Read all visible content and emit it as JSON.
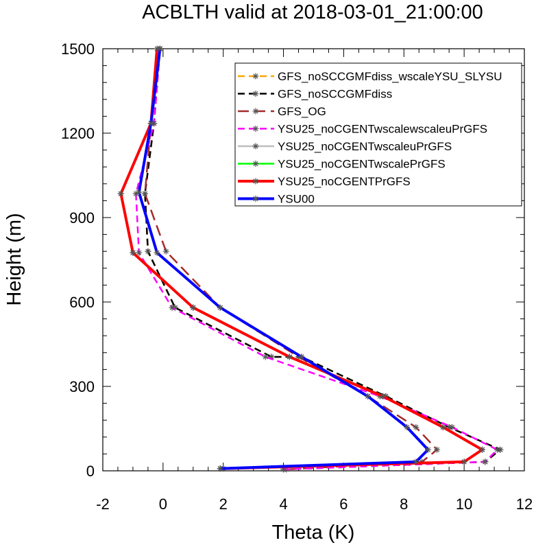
{
  "chart_data": {
    "type": "line",
    "title": "ACBLTH valid at 2018-03-01_21:00:00",
    "xlabel": "Theta (K)",
    "ylabel": "Height (m)",
    "xlim": [
      -2,
      12
    ],
    "ylim": [
      0,
      1500
    ],
    "xticks": [
      "-2",
      "0",
      "2",
      "4",
      "6",
      "8",
      "10",
      "12"
    ],
    "yticks": [
      "0",
      "300",
      "600",
      "900",
      "1200",
      "1500"
    ],
    "grid": false,
    "legend_position": "top-right",
    "series": [
      {
        "name": "GFS_noSCCGMFdiss_wscaleYSU_SLYSU",
        "color": "#ffa500",
        "dash": "dash",
        "width": 2.5,
        "x": [
          4.0,
          10.7,
          11.2,
          9.5,
          7.4,
          4.6,
          3.6,
          0.4,
          -0.5,
          -0.6,
          -0.3,
          -0.1
        ],
        "y": [
          5,
          32,
          75,
          155,
          265,
          405,
          405,
          580,
          780,
          985,
          1235,
          1500
        ]
      },
      {
        "name": "GFS_noSCCGMFdiss",
        "color": "#000000",
        "dash": "dash",
        "width": 2.5,
        "x": [
          4.0,
          10.7,
          11.2,
          9.5,
          7.4,
          4.6,
          3.6,
          0.4,
          -0.5,
          -0.6,
          -0.3,
          -0.1
        ],
        "y": [
          5,
          32,
          75,
          155,
          265,
          405,
          405,
          580,
          780,
          985,
          1235,
          1500
        ]
      },
      {
        "name": "GFS_OG",
        "color": "#a52a2a",
        "dash": "longdash",
        "width": 2.5,
        "x": [
          4.1,
          8.6,
          9.1,
          8.4,
          6.8,
          4.5,
          1.9,
          0.1,
          -0.6,
          -0.4,
          -0.1
        ],
        "y": [
          5,
          32,
          75,
          155,
          265,
          405,
          580,
          780,
          985,
          1235,
          1500
        ]
      },
      {
        "name": "YSU25_noCGENTwscalewscaleuPrGFS",
        "color": "#ff00ff",
        "dash": "dash",
        "width": 2.5,
        "x": [
          4.0,
          10.7,
          11.1,
          9.6,
          7.2,
          3.4,
          0.3,
          -0.8,
          -0.9,
          -0.3,
          -0.1
        ],
        "y": [
          5,
          32,
          75,
          155,
          265,
          405,
          580,
          775,
          985,
          1235,
          1500
        ]
      },
      {
        "name": "YSU25_noCGENTwscaleuPrGFS",
        "color": "#bebebe",
        "dash": "solid",
        "width": 2.5,
        "x": [
          1.9,
          10.0,
          10.6,
          9.3,
          7.3,
          4.2,
          1.0,
          -1.0,
          -1.4,
          -0.4,
          -0.1
        ],
        "y": [
          8,
          32,
          75,
          155,
          265,
          405,
          580,
          775,
          985,
          1235,
          1500
        ]
      },
      {
        "name": "YSU25_noCGENTwscalePrGFS",
        "color": "#00ff00",
        "dash": "solid",
        "width": 2.5,
        "x": [
          1.9,
          10.0,
          10.6,
          9.3,
          7.3,
          4.2,
          1.0,
          -1.0,
          -1.4,
          -0.4,
          -0.1
        ],
        "y": [
          8,
          32,
          75,
          155,
          265,
          405,
          580,
          775,
          985,
          1235,
          1500
        ]
      },
      {
        "name": "YSU25_noCGENTPrGFS",
        "color": "#ff0000",
        "dash": "solid",
        "width": 4,
        "x": [
          2.0,
          10.0,
          10.6,
          9.3,
          7.3,
          4.2,
          1.0,
          -1.0,
          -1.4,
          -0.4,
          -0.2
        ],
        "y": [
          8,
          32,
          75,
          155,
          265,
          405,
          580,
          775,
          985,
          1235,
          1500
        ]
      },
      {
        "name": "YSU00",
        "color": "#0000ff",
        "dash": "solid",
        "width": 4,
        "x": [
          1.9,
          8.4,
          8.8,
          8.1,
          6.8,
          4.6,
          1.9,
          -0.2,
          -0.8,
          -0.4,
          -0.1
        ],
        "y": [
          8,
          32,
          75,
          155,
          265,
          405,
          580,
          775,
          990,
          1235,
          1500
        ]
      }
    ]
  }
}
